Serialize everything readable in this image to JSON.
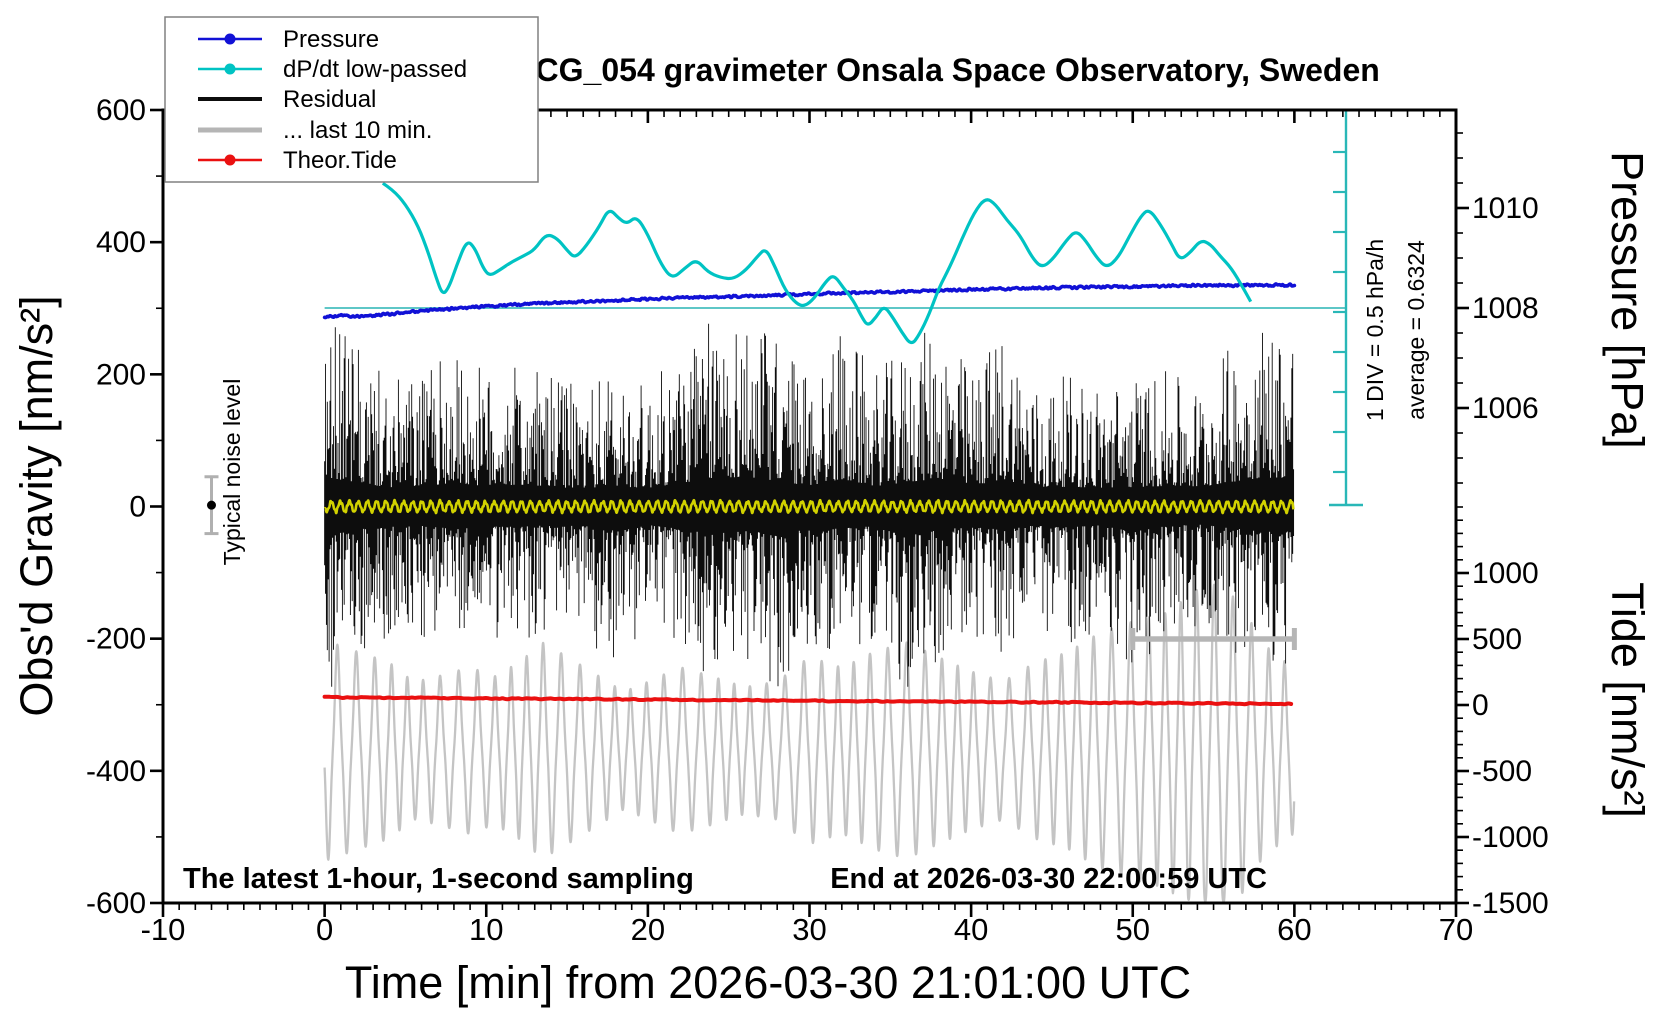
{
  "title": "SCG_054 gravimeter Onsala Space Observatory, Sweden",
  "legend": {
    "items": [
      {
        "label": "Pressure",
        "color": "#1111d6",
        "marker": "dot"
      },
      {
        "label": "dP/dt low-passed",
        "color": "#00c3c3",
        "marker": "dot"
      },
      {
        "label": "Residual",
        "color": "#0d0d0d",
        "marker": "line"
      },
      {
        "label": "... last 10 min.",
        "color": "#b5b5b5",
        "marker": "line"
      },
      {
        "label": "Theor.Tide",
        "color": "#ea1010",
        "marker": "dot"
      }
    ]
  },
  "annotations": {
    "noise_label": "Typical noise level",
    "div_label": "1 DIV = 0.5 hPa/h",
    "average_label": "average = 0.6324",
    "sampling_note": "The latest 1-hour, 1-second sampling",
    "end_note": "End at 2026-03-30 22:00:59 UTC"
  },
  "axes": {
    "x": {
      "label": "Time [min] from 2026-03-30 21:01:00 UTC",
      "min": -10,
      "max": 70,
      "major_ticks": [
        -10,
        0,
        10,
        20,
        30,
        40,
        50,
        60,
        70
      ],
      "minor_step": 1
    },
    "y_left": {
      "label": "Obs'd Gravity [nm/s²]",
      "min": -600,
      "max": 600,
      "major_ticks": [
        600,
        400,
        200,
        0,
        -200,
        -400,
        -600
      ],
      "minor_step": 100
    },
    "y_right_pressure": {
      "label": "Pressure [hPa]",
      "major_ticks": [
        1010,
        1008,
        1006
      ],
      "minor_step": 0.5
    },
    "y_right_tide": {
      "label": "Tide [nm/s²]",
      "major_ticks": [
        1000,
        500,
        0,
        -500,
        -1000,
        -1500
      ],
      "minor_step": 100
    }
  },
  "chart_data": {
    "type": "line",
    "title": "SCG_054 gravimeter Onsala Space Observatory, Sweden",
    "xlabel": "Time [min] from 2026-03-30 21:01:00 UTC",
    "x_range": [
      -10,
      70
    ],
    "gravity_range": [
      -600,
      600
    ],
    "pressure_axis": {
      "ticks": [
        1006,
        1008,
        1010
      ],
      "hpa_1008_aligned_with_dpdt_zero": true
    },
    "tide_axis": {
      "ticks": [
        -1500,
        -1000,
        -500,
        0,
        500,
        1000
      ]
    },
    "dpdt_scale": {
      "div_label": "1 DIV = 0.5 hPa/h",
      "div_value_hpa_per_h": 0.5,
      "average_hpa_per_h": 0.6324
    },
    "noise_marker": {
      "t": -7,
      "value_nms2": 2,
      "error_nms2": 43
    },
    "last10_bar": {
      "t_start": 50,
      "t_end": 60,
      "tide_value": 500
    },
    "series": [
      {
        "name": "Pressure",
        "axis": "pressure_hPa",
        "color": "#1111d6",
        "points": [
          [
            0,
            1007.82
          ],
          [
            1,
            1007.85
          ],
          [
            2,
            1007.83
          ],
          [
            3,
            1007.85
          ],
          [
            4,
            1007.88
          ],
          [
            5,
            1007.91
          ],
          [
            6,
            1007.94
          ],
          [
            8,
            1007.99
          ],
          [
            10,
            1008.03
          ],
          [
            12,
            1008.07
          ],
          [
            14,
            1008.1
          ],
          [
            16,
            1008.13
          ],
          [
            18,
            1008.15
          ],
          [
            20,
            1008.18
          ],
          [
            22,
            1008.2
          ],
          [
            24,
            1008.22
          ],
          [
            26,
            1008.24
          ],
          [
            28,
            1008.26
          ],
          [
            30,
            1008.28
          ],
          [
            32,
            1008.3
          ],
          [
            34,
            1008.32
          ],
          [
            36,
            1008.33
          ],
          [
            38,
            1008.35
          ],
          [
            40,
            1008.37
          ],
          [
            42,
            1008.38
          ],
          [
            44,
            1008.4
          ],
          [
            46,
            1008.41
          ],
          [
            48,
            1008.42
          ],
          [
            50,
            1008.43
          ],
          [
            52,
            1008.44
          ],
          [
            54,
            1008.45
          ],
          [
            56,
            1008.45
          ],
          [
            58,
            1008.46
          ],
          [
            60,
            1008.46
          ]
        ]
      },
      {
        "name": "dP/dt low-passed",
        "axis": "hPa_per_h",
        "color": "#00c3c3",
        "ref_line_color": "#5ec7c7",
        "points": [
          [
            3.6,
            1.56
          ],
          [
            4.2,
            1.48
          ],
          [
            5.0,
            1.3
          ],
          [
            5.8,
            1.02
          ],
          [
            6.4,
            0.7
          ],
          [
            6.9,
            0.38
          ],
          [
            7.3,
            0.16
          ],
          [
            7.7,
            0.26
          ],
          [
            8.2,
            0.55
          ],
          [
            8.8,
            0.85
          ],
          [
            9.3,
            0.75
          ],
          [
            9.8,
            0.5
          ],
          [
            10.2,
            0.4
          ],
          [
            10.8,
            0.47
          ],
          [
            11.6,
            0.58
          ],
          [
            12.4,
            0.66
          ],
          [
            13.0,
            0.73
          ],
          [
            13.7,
            0.93
          ],
          [
            14.4,
            0.87
          ],
          [
            15.0,
            0.72
          ],
          [
            15.5,
            0.62
          ],
          [
            16.2,
            0.78
          ],
          [
            17.0,
            1.02
          ],
          [
            17.6,
            1.25
          ],
          [
            18.2,
            1.12
          ],
          [
            18.7,
            1.05
          ],
          [
            19.3,
            1.15
          ],
          [
            20.0,
            0.92
          ],
          [
            20.8,
            0.55
          ],
          [
            21.5,
            0.36
          ],
          [
            22.3,
            0.5
          ],
          [
            23.0,
            0.61
          ],
          [
            23.7,
            0.45
          ],
          [
            24.5,
            0.38
          ],
          [
            25.3,
            0.36
          ],
          [
            26.1,
            0.48
          ],
          [
            26.8,
            0.65
          ],
          [
            27.3,
            0.75
          ],
          [
            27.9,
            0.5
          ],
          [
            28.5,
            0.22
          ],
          [
            29.2,
            0.05
          ],
          [
            29.7,
            0.02
          ],
          [
            30.3,
            0.12
          ],
          [
            31.0,
            0.33
          ],
          [
            31.5,
            0.42
          ],
          [
            32.1,
            0.25
          ],
          [
            32.7,
            0.1
          ],
          [
            33.2,
            -0.1
          ],
          [
            33.6,
            -0.23
          ],
          [
            34.1,
            -0.12
          ],
          [
            34.6,
            0.03
          ],
          [
            35.1,
            -0.1
          ],
          [
            35.7,
            -0.3
          ],
          [
            36.3,
            -0.47
          ],
          [
            36.8,
            -0.33
          ],
          [
            37.4,
            -0.08
          ],
          [
            38.0,
            0.25
          ],
          [
            38.7,
            0.52
          ],
          [
            39.4,
            0.85
          ],
          [
            40.2,
            1.2
          ],
          [
            40.9,
            1.38
          ],
          [
            41.5,
            1.3
          ],
          [
            42.2,
            1.1
          ],
          [
            43.0,
            0.92
          ],
          [
            43.8,
            0.62
          ],
          [
            44.4,
            0.5
          ],
          [
            45.1,
            0.62
          ],
          [
            45.9,
            0.85
          ],
          [
            46.5,
            0.97
          ],
          [
            47.1,
            0.84
          ],
          [
            47.8,
            0.62
          ],
          [
            48.4,
            0.5
          ],
          [
            49.1,
            0.63
          ],
          [
            49.8,
            0.9
          ],
          [
            50.5,
            1.15
          ],
          [
            51.0,
            1.24
          ],
          [
            51.7,
            1.05
          ],
          [
            52.4,
            0.8
          ],
          [
            52.9,
            0.6
          ],
          [
            53.5,
            0.68
          ],
          [
            54.2,
            0.85
          ],
          [
            54.8,
            0.8
          ],
          [
            55.4,
            0.65
          ],
          [
            56.1,
            0.5
          ],
          [
            56.8,
            0.26
          ],
          [
            57.3,
            0.08
          ]
        ]
      },
      {
        "name": "Residual",
        "axis": "gravity_nms2",
        "color": "#0d0d0d",
        "kind": "noise-band",
        "envelope_nms2": [
          [
            0,
            300,
            290
          ],
          [
            2,
            240,
            230
          ],
          [
            4,
            190,
            200
          ],
          [
            6,
            205,
            195
          ],
          [
            8,
            235,
            225
          ],
          [
            10,
            205,
            200
          ],
          [
            12,
            215,
            205
          ],
          [
            14,
            195,
            190
          ],
          [
            16,
            185,
            195
          ],
          [
            18,
            205,
            245
          ],
          [
            20,
            185,
            180
          ],
          [
            22,
            235,
            225
          ],
          [
            24,
            285,
            280
          ],
          [
            26,
            295,
            230
          ],
          [
            28,
            260,
            300
          ],
          [
            30,
            205,
            210
          ],
          [
            32,
            275,
            220
          ],
          [
            34,
            205,
            200
          ],
          [
            36,
            240,
            295
          ],
          [
            38,
            285,
            230
          ],
          [
            40,
            205,
            210
          ],
          [
            42,
            275,
            230
          ],
          [
            44,
            185,
            190
          ],
          [
            46,
            200,
            210
          ],
          [
            48,
            185,
            190
          ],
          [
            50,
            195,
            255
          ],
          [
            52,
            205,
            200
          ],
          [
            54,
            185,
            180
          ],
          [
            56,
            245,
            215
          ],
          [
            58,
            290,
            255
          ],
          [
            60,
            290,
            250
          ]
        ]
      },
      {
        "name": "Residual low-passed center",
        "axis": "gravity_nms2",
        "color": "#d2d200",
        "amplitude_nms2": 10,
        "period_min": 0.56
      },
      {
        "name": "... last 10 min.",
        "axis": "tide_nms2",
        "color": "#c4c4c4",
        "kind": "oscillation",
        "center_tide": -345,
        "period_min": 1.07,
        "envelope_tide": [
          [
            0,
            850
          ],
          [
            2,
            760
          ],
          [
            4,
            680
          ],
          [
            5.5,
            530
          ],
          [
            7,
            570
          ],
          [
            9,
            640
          ],
          [
            10.5,
            570
          ],
          [
            12,
            680
          ],
          [
            13.5,
            830
          ],
          [
            15,
            720
          ],
          [
            17,
            570
          ],
          [
            18.5,
            455
          ],
          [
            20,
            530
          ],
          [
            22,
            640
          ],
          [
            24,
            570
          ],
          [
            26,
            490
          ],
          [
            28,
            530
          ],
          [
            30,
            720
          ],
          [
            32,
            640
          ],
          [
            34,
            760
          ],
          [
            36,
            830
          ],
          [
            38,
            720
          ],
          [
            40,
            610
          ],
          [
            42,
            530
          ],
          [
            44,
            680
          ],
          [
            46,
            760
          ],
          [
            48,
            910
          ],
          [
            50,
            990
          ],
          [
            52,
            1060
          ],
          [
            54,
            1240
          ],
          [
            55.5,
            1290
          ],
          [
            57,
            1060
          ],
          [
            58,
            830
          ],
          [
            59.5,
            680
          ],
          [
            60,
            640
          ]
        ]
      },
      {
        "name": "Theor.Tide",
        "axis": "tide_nms2",
        "color": "#ea1010",
        "points": [
          [
            0,
            58
          ],
          [
            5,
            54
          ],
          [
            10,
            50
          ],
          [
            15,
            46
          ],
          [
            20,
            42
          ],
          [
            25,
            38
          ],
          [
            30,
            33
          ],
          [
            35,
            28
          ],
          [
            40,
            24
          ],
          [
            45,
            20
          ],
          [
            50,
            16
          ],
          [
            55,
            12
          ],
          [
            60,
            8
          ]
        ]
      }
    ]
  }
}
